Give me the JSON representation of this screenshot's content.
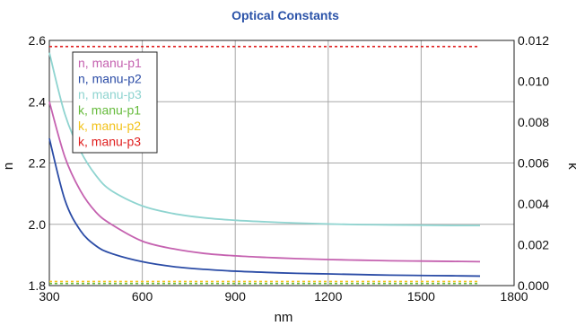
{
  "chart_data": {
    "type": "line",
    "title": "Optical Constants",
    "xlabel": "nm",
    "ylabel": "n",
    "y2label": "k",
    "xlim": [
      300,
      1800
    ],
    "ylim": [
      1.8,
      2.6
    ],
    "y2lim": [
      0,
      0.012
    ],
    "xticks": [
      "300",
      "600",
      "900",
      "1200",
      "1500",
      "1800"
    ],
    "yticks": [
      "1.8",
      "2.0",
      "2.2",
      "2.4",
      "2.6"
    ],
    "y2ticks": [
      "0.000",
      "0.002",
      "0.004",
      "0.006",
      "0.008",
      "0.010",
      "0.012"
    ],
    "grid": true,
    "legend_position": "top-left",
    "x": [
      300,
      350,
      400,
      450,
      500,
      600,
      700,
      800,
      900,
      1000,
      1100,
      1200,
      1300,
      1400,
      1500,
      1600,
      1690
    ],
    "series": [
      {
        "name": "n, manu-p1",
        "axis": "left",
        "color": "#c562b0",
        "values": [
          2.4,
          2.22,
          2.11,
          2.04,
          2.0,
          1.945,
          1.92,
          1.905,
          1.897,
          1.892,
          1.888,
          1.885,
          1.883,
          1.881,
          1.88,
          1.879,
          1.878
        ]
      },
      {
        "name": "n, manu-p2",
        "axis": "left",
        "color": "#2b4ca6",
        "values": [
          2.28,
          2.08,
          1.98,
          1.93,
          1.905,
          1.878,
          1.862,
          1.853,
          1.847,
          1.843,
          1.84,
          1.838,
          1.836,
          1.834,
          1.833,
          1.832,
          1.831
        ]
      },
      {
        "name": "n, manu-p3",
        "axis": "left",
        "color": "#8fd4d0",
        "values": [
          2.56,
          2.36,
          2.24,
          2.16,
          2.11,
          2.06,
          2.035,
          2.021,
          2.013,
          2.008,
          2.004,
          2.001,
          1.999,
          1.998,
          1.997,
          1.996,
          1.996
        ]
      },
      {
        "name": "k, manu-p1",
        "axis": "right",
        "color": "#66bb3c",
        "dashed": true,
        "values": [
          0.0001,
          0.0001,
          0.0001,
          0.0001,
          0.0001,
          0.0001,
          0.0001,
          0.0001,
          0.0001,
          0.0001,
          0.0001,
          0.0001,
          0.0001,
          0.0001,
          0.0001,
          0.0001,
          0.0001
        ]
      },
      {
        "name": "k, manu-p2",
        "axis": "right",
        "color": "#f2c21a",
        "dashed": true,
        "values": [
          0.0002,
          0.0002,
          0.0002,
          0.0002,
          0.0002,
          0.0002,
          0.0002,
          0.0002,
          0.0002,
          0.0002,
          0.0002,
          0.0002,
          0.0002,
          0.0002,
          0.0002,
          0.0002,
          0.0002
        ]
      },
      {
        "name": "k, manu-p3",
        "axis": "right",
        "color": "#e02020",
        "dashed": true,
        "values": [
          0.0117,
          0.0117,
          0.0117,
          0.0117,
          0.0117,
          0.0117,
          0.0117,
          0.0117,
          0.0117,
          0.0117,
          0.0117,
          0.0117,
          0.0117,
          0.0117,
          0.0117,
          0.0117,
          0.0117
        ]
      }
    ]
  }
}
